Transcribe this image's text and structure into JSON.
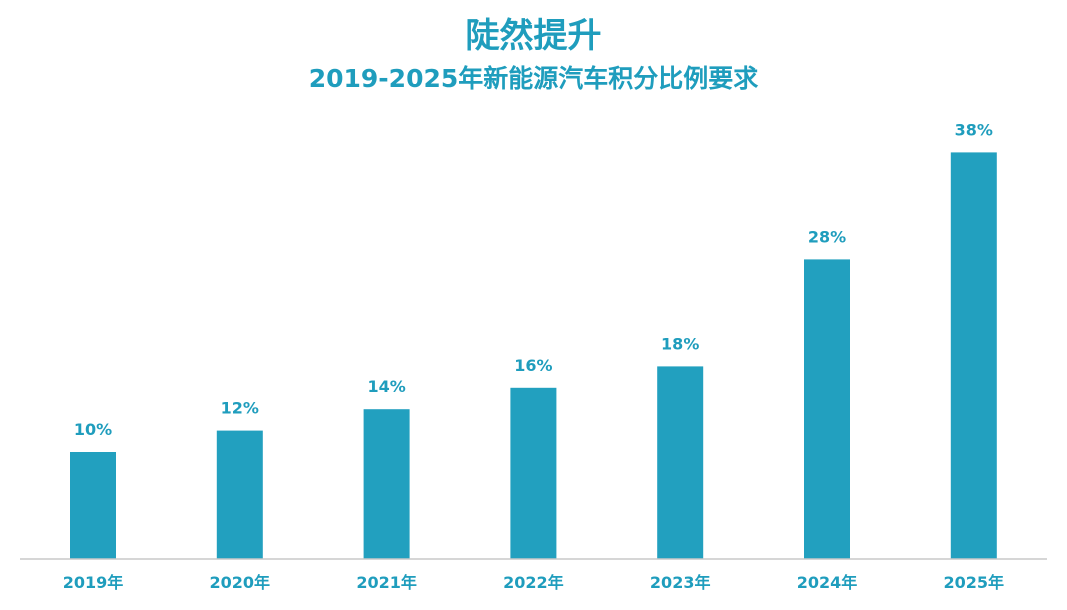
{
  "chart_data": {
    "type": "bar",
    "title": "陡然提升",
    "subtitle": "2019-2025年新能源汽车积分比例要求",
    "categories": [
      "2019年",
      "2020年",
      "2021年",
      "2022年",
      "2023年",
      "2024年",
      "2025年"
    ],
    "values": [
      10,
      12,
      14,
      16,
      18,
      28,
      38
    ],
    "value_labels": [
      "10%",
      "12%",
      "14%",
      "16%",
      "18%",
      "28%",
      "38%"
    ],
    "unit": "%",
    "xlabel": "",
    "ylabel": "",
    "ylim": [
      0,
      40
    ],
    "grid": false,
    "legend": "none",
    "bar_color": "#22a0bf",
    "text_color": "#1f9dbd"
  }
}
